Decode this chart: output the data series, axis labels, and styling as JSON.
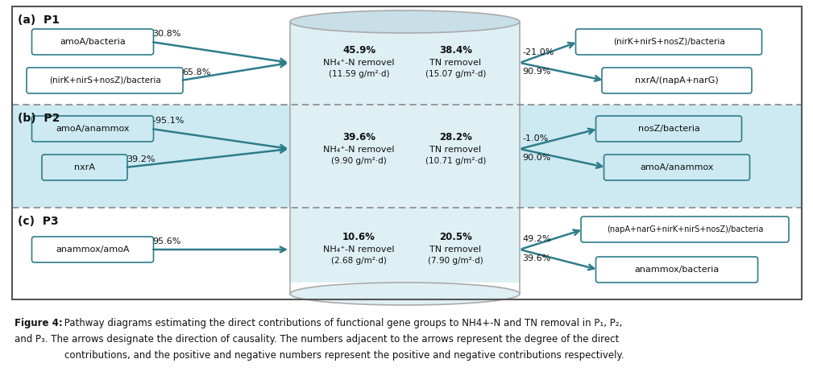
{
  "caption_line1": "Figure 4: Pathway diagrams estimating the direct contributions of functional gene groups to NH4+-N and TN removal in P₁, P₂,",
  "caption_line2": "and P₃. The arrows designate the direction of causality. The numbers adjacent to the arrows represent the degree of the direct",
  "caption_line3": "contributions, and the positive and negative numbers represent the positive and negative contributions respectively.",
  "arrow_color": "#2e7d8a",
  "box_border_color": "#2e7d8a",
  "outer_border_color": "#555555",
  "divider_color": "#888888",
  "cylinder_fill": "#dff0f5",
  "cylinder_top_fill": "#c8dfe8",
  "cylinder_border": "#aaaaaa",
  "p2_bg": "#cde9f2",
  "sections": [
    {
      "label": "(a)  P1",
      "bg": "white",
      "left_boxes": [
        {
          "text": "amoA/bacteria",
          "pct": "30.8%",
          "wide": false
        },
        {
          "text": "(nirK+nirS+nosZ)/bacteria",
          "pct": "65.8%",
          "wide": true
        }
      ],
      "nh4_pct": "45.9%",
      "nh4_line2": "NH₄⁺-N removel",
      "nh4_line3": "(11.59 g/m²·d)",
      "tn_pct": "38.4%",
      "tn_line2": "TN removel",
      "tn_line3": "(15.07 g/m²·d)",
      "right_boxes": [
        {
          "text": "(nirK+nirS+nosZ)/bacteria",
          "pct": "90.9%",
          "wide": true
        },
        {
          "text": "nxrA/(napA+narG)",
          "pct": "-21.0%",
          "wide": false
        }
      ]
    },
    {
      "label": "(b)  P2",
      "bg": "#cde9f2",
      "left_boxes": [
        {
          "text": "amoA/anammox",
          "pct": "-95.1%",
          "wide": false
        },
        {
          "text": "nxrA",
          "pct": "39.2%",
          "wide": false
        }
      ],
      "nh4_pct": "39.6%",
      "nh4_line2": "NH₄⁺-N removel",
      "nh4_line3": "(9.90 g/m²·d)",
      "tn_pct": "28.2%",
      "tn_line2": "TN removel",
      "tn_line3": "(10.71 g/m²·d)",
      "right_boxes": [
        {
          "text": "nosZ/bacteria",
          "pct": "90.0%",
          "wide": false
        },
        {
          "text": "amoA/anammox",
          "pct": "-1.0%",
          "wide": false
        }
      ]
    },
    {
      "label": "(c)  P3",
      "bg": "white",
      "left_boxes": [
        {
          "text": "anammox/amoA",
          "pct": "95.6%",
          "wide": false
        }
      ],
      "nh4_pct": "10.6%",
      "nh4_line2": "NH₄⁺-N removel",
      "nh4_line3": "(2.68 g/m²·d)",
      "tn_pct": "20.5%",
      "tn_line2": "TN removel",
      "tn_line3": "(7.90 g/m²·d)",
      "right_boxes": [
        {
          "text": "(napA+narG+nirK+nirS+nosZ)/bacteria",
          "pct": "39.6%",
          "wide": true
        },
        {
          "text": "anammox/bacteria",
          "pct": "49.2%",
          "wide": false
        }
      ]
    }
  ]
}
